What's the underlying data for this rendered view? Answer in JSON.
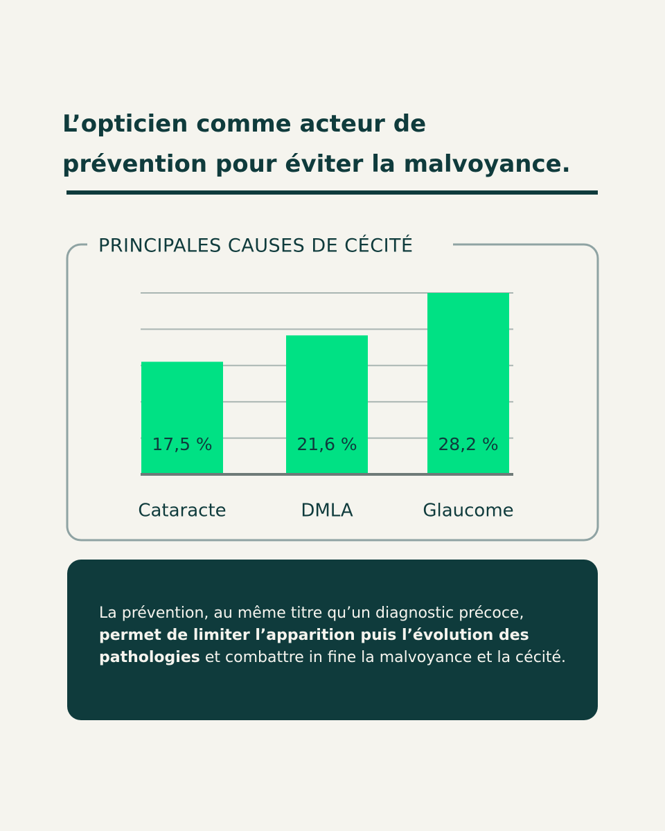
{
  "header": {
    "title": "L’opticien comme acteur de prévention pour éviter la malvoyance."
  },
  "chart_data": {
    "type": "bar",
    "title": "PRINCIPALES CAUSES DE CÉCITÉ",
    "categories": [
      "Cataracte",
      "DMLA",
      "Glaucome"
    ],
    "values": [
      17.5,
      21.6,
      28.2
    ],
    "value_labels": [
      "17,5 %",
      "21,6 %",
      "28,2 %"
    ],
    "color": "#00e184",
    "ylim": [
      0,
      28.2
    ],
    "grid": true
  },
  "note": {
    "parts": [
      {
        "text": "La prévention, au même titre qu’un diagnostic précoce, ",
        "bold": false
      },
      {
        "text": "permet de limiter l’apparition puis l’évolution des pathologies",
        "bold": true
      },
      {
        "text": " et combattre in fine la malvoyance et la cécité.",
        "bold": false
      }
    ]
  }
}
